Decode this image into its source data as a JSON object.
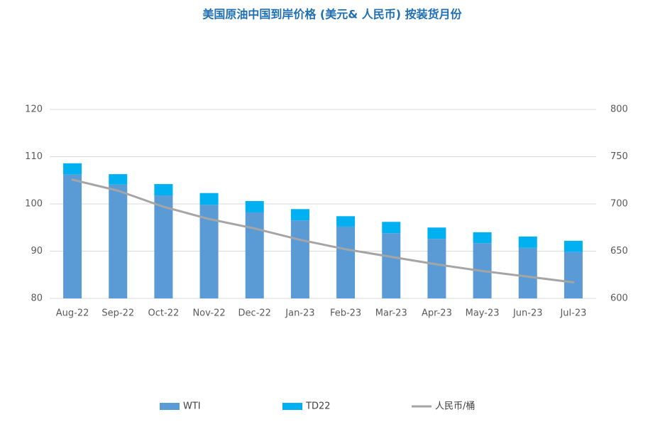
{
  "chart_data": {
    "type": "bar",
    "title": "美国原油中国到岸价格 (美元& 人民币) 按装货月份",
    "categories": [
      "Aug-22",
      "Sep-22",
      "Oct-22",
      "Nov-22",
      "Dec-22",
      "Jan-23",
      "Feb-23",
      "Mar-23",
      "Apr-23",
      "May-23",
      "Jun-23",
      "Jul-23"
    ],
    "series": [
      {
        "name": "WTI",
        "color": "#5b9bd5",
        "stacked": true,
        "values": [
          106.2,
          104.1,
          101.8,
          99.8,
          98.2,
          96.5,
          95.2,
          93.8,
          92.6,
          91.7,
          90.7,
          89.8
        ]
      },
      {
        "name": "TD22",
        "color": "#00b0f0",
        "stacked": true,
        "values": [
          2.4,
          2.2,
          2.4,
          2.5,
          2.4,
          2.4,
          2.2,
          2.4,
          2.4,
          2.3,
          2.4,
          2.4
        ]
      },
      {
        "name": "人民币/桶",
        "color": "#a5a5a5",
        "type": "line",
        "axis": "y2",
        "values": [
          725.6,
          714,
          697,
          684,
          674,
          662,
          652,
          644,
          636,
          629,
          623,
          617
        ]
      }
    ],
    "ylim": [
      80,
      120
    ],
    "yticks": [
      80,
      90,
      100,
      110,
      120
    ],
    "y2lim": [
      600,
      800
    ],
    "y2ticks": [
      600,
      650,
      700,
      750,
      800
    ],
    "grid": true,
    "legend": "bottom"
  }
}
